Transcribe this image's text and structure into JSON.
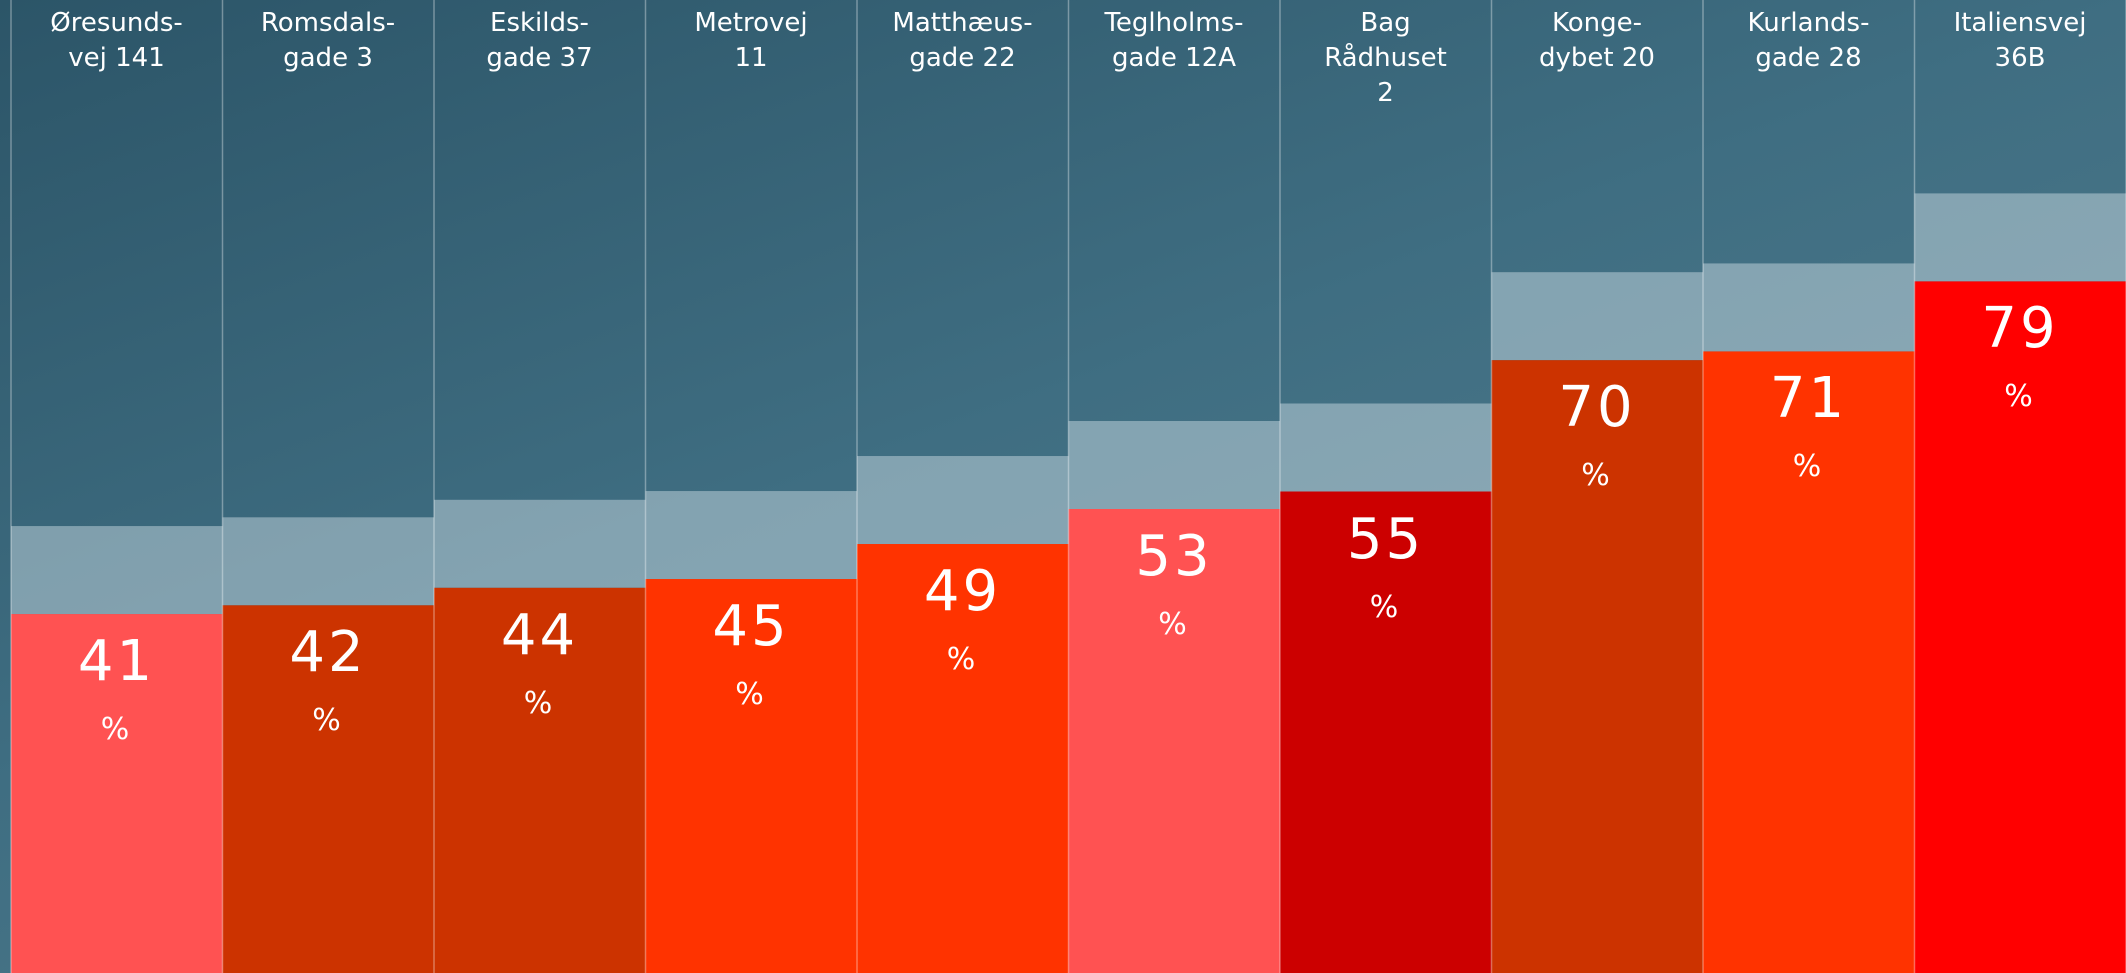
{
  "chart_data": {
    "type": "bar",
    "categories": [
      "Øresunds-\nvej 141",
      "Romsdals-\ngade 3",
      "Eskilds-\ngade 37",
      "Metrovej\n11",
      "Matthæus-\ngade 22",
      "Teglholms-\ngade 12A",
      "Bag\nRådhuset\n2",
      "Konge-\ndybet 20",
      "Kurlands-\ngade 28",
      "Italiensvej\n36B"
    ],
    "values": [
      41,
      42,
      44,
      45,
      49,
      53,
      55,
      70,
      71,
      79
    ],
    "value_labels": [
      "41\n%",
      "42\n%",
      "44\n%",
      "45\n%",
      "49\n%",
      "53\n%",
      "55\n%",
      "70\n%",
      "71\n%",
      "79\n%"
    ],
    "colors": [
      "#ff5252",
      "#cc3300",
      "#cc3300",
      "#ff3300",
      "#ff3300",
      "#ff5252",
      "#cc0000",
      "#cc3300",
      "#ff3300",
      "#ff0000"
    ],
    "ylim": [
      0,
      110
    ]
  }
}
